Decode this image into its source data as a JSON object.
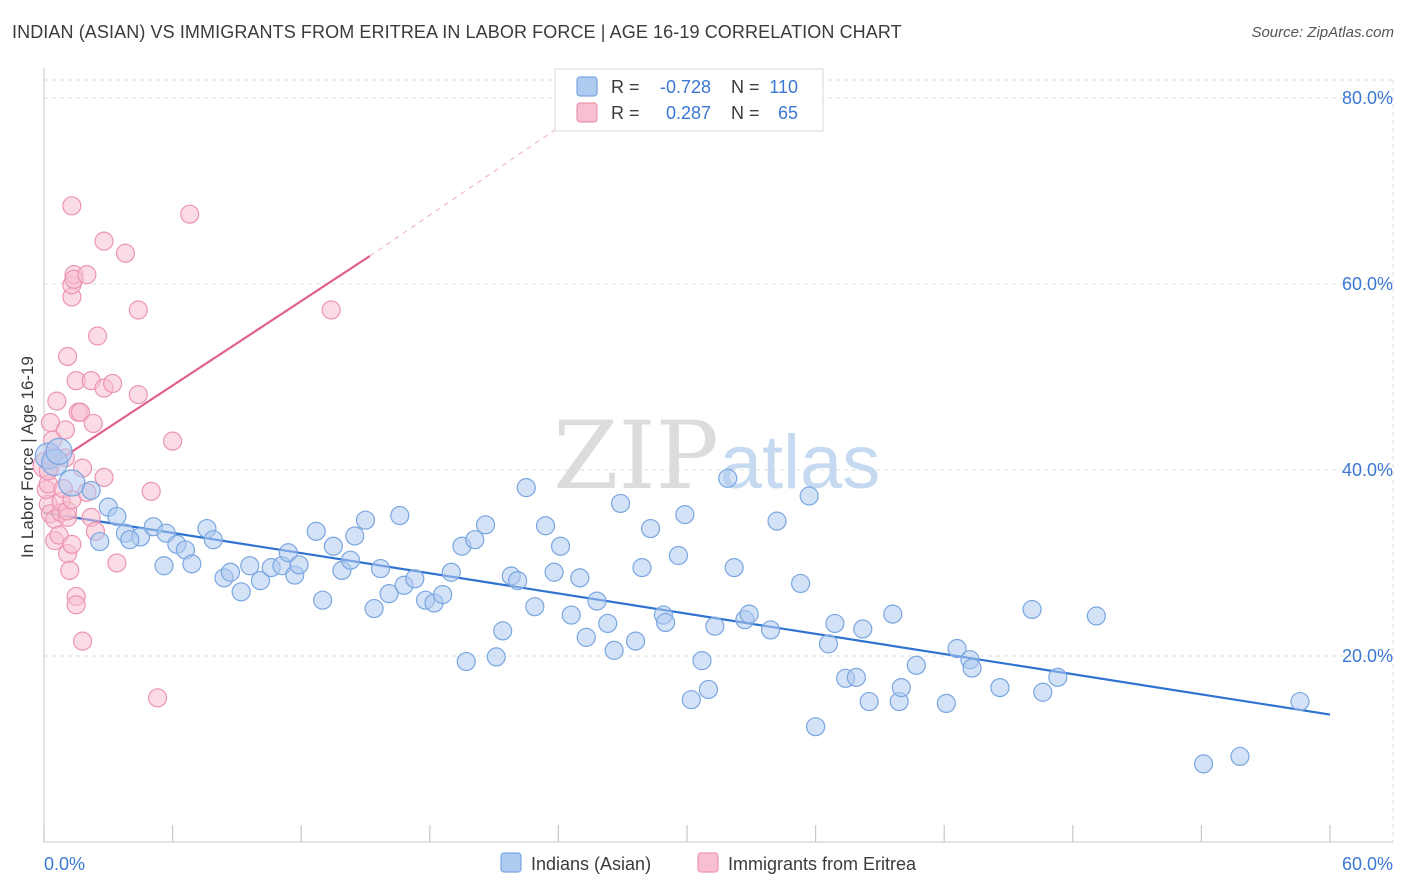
{
  "header": {
    "title": "INDIAN (ASIAN) VS IMMIGRANTS FROM ERITREA IN LABOR FORCE | AGE 16-19 CORRELATION CHART",
    "source": "Source: ZipAtlas.com"
  },
  "watermark": {
    "zip": "ZIP",
    "atlas": "atlas"
  },
  "legend_box": {
    "rows": [
      {
        "r_label": "R =",
        "r_value": "-0.728",
        "n_label": "N =",
        "n_value": "110"
      },
      {
        "r_label": "R =",
        "r_value": "0.287",
        "n_label": "N =",
        "n_value": "65"
      }
    ]
  },
  "bottom_legend": {
    "items": [
      "Indians (Asian)",
      "Immigrants from Eritrea"
    ]
  },
  "colors": {
    "blue_fill": "#aecbf0",
    "blue_stroke": "#7aa6e0",
    "blue_line": "#2f72d0",
    "pink_fill": "#f7bfd0",
    "pink_stroke": "#ec94b2",
    "pink_line": "#e06090",
    "value_text": "#3a78d4",
    "grid": "#dddddd"
  },
  "chart_data": {
    "type": "scatter",
    "title": "INDIAN (ASIAN) VS IMMIGRANTS FROM ERITREA IN LABOR FORCE | AGE 16-19 CORRELATION CHART",
    "xlabel": "",
    "ylabel": "In Labor Force | Age 16-19",
    "xlim": [
      0,
      60
    ],
    "ylim": [
      0,
      83
    ],
    "x_tick_labels": [
      "0.0%",
      "60.0%"
    ],
    "y_tick_labels": [
      {
        "value": 20,
        "label": "20.0%"
      },
      {
        "value": 40,
        "label": "40.0%"
      },
      {
        "value": 60,
        "label": "60.0%"
      },
      {
        "value": 80,
        "label": "80.0%"
      }
    ],
    "y_gridlines": [
      20,
      40,
      60,
      80
    ],
    "grid": true,
    "legend": "bottom",
    "series": [
      {
        "name": "Indians (Asian)",
        "color": "#aecbf0",
        "r": -0.728,
        "n": 110,
        "trend": {
          "x": [
            0,
            60
          ],
          "y": [
            35.4,
            13.7
          ]
        },
        "points": [
          [
            0.2,
            41.5,
            "L"
          ],
          [
            0.5,
            40.8,
            "L"
          ],
          [
            0.7,
            42.0,
            "L"
          ],
          [
            1.3,
            38.6,
            "L"
          ],
          [
            2.2,
            37.8,
            "M"
          ],
          [
            3.0,
            36.0,
            "M"
          ],
          [
            3.4,
            35.0,
            "M"
          ],
          [
            3.8,
            33.2,
            "M"
          ],
          [
            4.5,
            32.8,
            "M"
          ],
          [
            5.1,
            33.9,
            "M"
          ],
          [
            2.6,
            32.3,
            "M"
          ],
          [
            4.0,
            32.5,
            "M"
          ],
          [
            5.7,
            33.2,
            "M"
          ],
          [
            6.2,
            32.0,
            "M"
          ],
          [
            5.6,
            29.7,
            "M"
          ],
          [
            6.6,
            31.4,
            "M"
          ],
          [
            6.9,
            29.9,
            "M"
          ],
          [
            7.6,
            33.7,
            "M"
          ],
          [
            7.9,
            32.5,
            "M"
          ],
          [
            8.4,
            28.4,
            "M"
          ],
          [
            8.7,
            29.0,
            "M"
          ],
          [
            9.2,
            26.9,
            "M"
          ],
          [
            9.6,
            29.7,
            "M"
          ],
          [
            10.1,
            28.1,
            "M"
          ],
          [
            10.6,
            29.5,
            "M"
          ],
          [
            11.1,
            29.7,
            "M"
          ],
          [
            11.4,
            31.1,
            "M"
          ],
          [
            11.7,
            28.7,
            "M"
          ],
          [
            11.9,
            29.8,
            "M"
          ],
          [
            12.7,
            33.4,
            "M"
          ],
          [
            13.0,
            26.0,
            "M"
          ],
          [
            13.5,
            31.8,
            "M"
          ],
          [
            13.9,
            29.2,
            "M"
          ],
          [
            14.3,
            30.3,
            "M"
          ],
          [
            14.5,
            32.9,
            "M"
          ],
          [
            15.0,
            34.6,
            "M"
          ],
          [
            15.4,
            25.1,
            "M"
          ],
          [
            15.7,
            29.4,
            "M"
          ],
          [
            16.1,
            26.7,
            "M"
          ],
          [
            16.6,
            35.1,
            "M"
          ],
          [
            16.8,
            27.6,
            "M"
          ],
          [
            17.3,
            28.3,
            "M"
          ],
          [
            17.8,
            26.0,
            "M"
          ],
          [
            18.2,
            25.7,
            "M"
          ],
          [
            18.6,
            26.6,
            "M"
          ],
          [
            19.0,
            29.0,
            "M"
          ],
          [
            19.5,
            31.8,
            "M"
          ],
          [
            19.7,
            19.4,
            "M"
          ],
          [
            20.1,
            32.5,
            "M"
          ],
          [
            20.6,
            34.1,
            "M"
          ],
          [
            21.1,
            19.9,
            "M"
          ],
          [
            21.4,
            22.7,
            "M"
          ],
          [
            21.8,
            28.6,
            "M"
          ],
          [
            22.1,
            28.1,
            "M"
          ],
          [
            22.5,
            38.1,
            "M"
          ],
          [
            22.9,
            25.3,
            "M"
          ],
          [
            23.4,
            34.0,
            "M"
          ],
          [
            23.8,
            29.0,
            "M"
          ],
          [
            24.1,
            31.8,
            "M"
          ],
          [
            24.6,
            24.4,
            "M"
          ],
          [
            25.0,
            28.4,
            "M"
          ],
          [
            25.3,
            22.0,
            "M"
          ],
          [
            25.8,
            25.9,
            "M"
          ],
          [
            26.3,
            23.5,
            "M"
          ],
          [
            26.6,
            20.6,
            "M"
          ],
          [
            26.9,
            36.4,
            "M"
          ],
          [
            27.6,
            21.6,
            "M"
          ],
          [
            27.9,
            29.5,
            "M"
          ],
          [
            28.3,
            33.7,
            "M"
          ],
          [
            28.9,
            24.4,
            "M"
          ],
          [
            29.0,
            23.6,
            "M"
          ],
          [
            29.6,
            30.8,
            "M"
          ],
          [
            29.9,
            35.2,
            "M"
          ],
          [
            30.2,
            15.3,
            "M"
          ],
          [
            30.7,
            19.5,
            "M"
          ],
          [
            31.0,
            16.4,
            "M"
          ],
          [
            31.3,
            23.2,
            "M"
          ],
          [
            31.9,
            39.1,
            "M"
          ],
          [
            32.2,
            29.5,
            "M"
          ],
          [
            32.7,
            23.9,
            "M"
          ],
          [
            32.9,
            24.5,
            "M"
          ],
          [
            33.9,
            22.8,
            "M"
          ],
          [
            34.2,
            34.5,
            "M"
          ],
          [
            35.3,
            27.8,
            "M"
          ],
          [
            35.7,
            37.2,
            "M"
          ],
          [
            36.0,
            12.4,
            "M"
          ],
          [
            36.6,
            21.3,
            "M"
          ],
          [
            36.9,
            23.5,
            "M"
          ],
          [
            37.4,
            17.6,
            "M"
          ],
          [
            37.9,
            17.7,
            "M"
          ],
          [
            38.2,
            22.9,
            "M"
          ],
          [
            38.5,
            15.1,
            "M"
          ],
          [
            39.6,
            24.5,
            "M"
          ],
          [
            39.9,
            15.1,
            "M"
          ],
          [
            40.0,
            16.6,
            "M"
          ],
          [
            40.7,
            19.0,
            "M"
          ],
          [
            42.1,
            14.9,
            "M"
          ],
          [
            42.6,
            20.8,
            "M"
          ],
          [
            43.2,
            19.6,
            "M"
          ],
          [
            43.3,
            18.7,
            "M"
          ],
          [
            44.6,
            16.6,
            "M"
          ],
          [
            46.1,
            25.0,
            "M"
          ],
          [
            46.6,
            16.1,
            "M"
          ],
          [
            47.3,
            17.7,
            "M"
          ],
          [
            49.1,
            24.3,
            "M"
          ],
          [
            54.1,
            8.4,
            "M"
          ],
          [
            55.8,
            9.2,
            "M"
          ],
          [
            58.6,
            15.1,
            "M"
          ]
        ]
      },
      {
        "name": "Immigrants from Eritrea",
        "color": "#f7bfd0",
        "r": 0.287,
        "n": 65,
        "trend": {
          "x": [
            0,
            15.2
          ],
          "y": [
            40.0,
            63.0
          ]
        },
        "trend_extension": {
          "x": [
            15.2,
            24.5
          ],
          "y": [
            63.0,
            77.6
          ]
        },
        "points": [
          [
            0.1,
            40.5,
            "L"
          ],
          [
            0.2,
            36.3,
            "M"
          ],
          [
            0.3,
            35.3,
            "M"
          ],
          [
            0.1,
            37.9,
            "M"
          ],
          [
            0.2,
            38.5,
            "M"
          ],
          [
            0.2,
            39.9,
            "M"
          ],
          [
            0.4,
            41.5,
            "M"
          ],
          [
            0.4,
            43.2,
            "M"
          ],
          [
            0.3,
            45.1,
            "M"
          ],
          [
            0.5,
            34.7,
            "M"
          ],
          [
            0.5,
            32.4,
            "M"
          ],
          [
            0.6,
            47.4,
            "M"
          ],
          [
            0.7,
            33.0,
            "M"
          ],
          [
            0.8,
            35.4,
            "M"
          ],
          [
            0.8,
            36.6,
            "M"
          ],
          [
            0.9,
            38.0,
            "M"
          ],
          [
            1.0,
            44.3,
            "M"
          ],
          [
            1.0,
            41.3,
            "M"
          ],
          [
            1.1,
            34.9,
            "M"
          ],
          [
            1.1,
            35.6,
            "M"
          ],
          [
            1.1,
            52.2,
            "M"
          ],
          [
            1.1,
            31.0,
            "M"
          ],
          [
            1.2,
            29.2,
            "M"
          ],
          [
            1.3,
            32.0,
            "M"
          ],
          [
            1.3,
            36.8,
            "M"
          ],
          [
            1.3,
            58.6,
            "M"
          ],
          [
            1.3,
            59.9,
            "M"
          ],
          [
            1.4,
            61.0,
            "M"
          ],
          [
            1.4,
            60.5,
            "M"
          ],
          [
            1.3,
            68.4,
            "M"
          ],
          [
            1.5,
            26.4,
            "M"
          ],
          [
            1.5,
            25.5,
            "M"
          ],
          [
            1.5,
            49.6,
            "M"
          ],
          [
            1.6,
            46.2,
            "M"
          ],
          [
            1.7,
            46.2,
            "M"
          ],
          [
            1.8,
            40.2,
            "M"
          ],
          [
            1.8,
            21.6,
            "M"
          ],
          [
            2.0,
            61.0,
            "M"
          ],
          [
            2.0,
            37.6,
            "M"
          ],
          [
            2.2,
            49.6,
            "M"
          ],
          [
            2.2,
            34.9,
            "M"
          ],
          [
            2.3,
            45.0,
            "M"
          ],
          [
            2.4,
            33.4,
            "M"
          ],
          [
            2.5,
            54.4,
            "M"
          ],
          [
            2.8,
            39.2,
            "M"
          ],
          [
            2.8,
            48.8,
            "M"
          ],
          [
            2.8,
            64.6,
            "M"
          ],
          [
            3.2,
            49.3,
            "M"
          ],
          [
            3.4,
            30.0,
            "M"
          ],
          [
            3.8,
            63.3,
            "M"
          ],
          [
            4.4,
            48.1,
            "M"
          ],
          [
            4.4,
            57.2,
            "M"
          ],
          [
            5.0,
            37.7,
            "M"
          ],
          [
            5.3,
            15.5,
            "M"
          ],
          [
            6.0,
            43.1,
            "M"
          ],
          [
            6.8,
            67.5,
            "M"
          ],
          [
            13.4,
            57.2,
            "M"
          ]
        ]
      }
    ]
  }
}
